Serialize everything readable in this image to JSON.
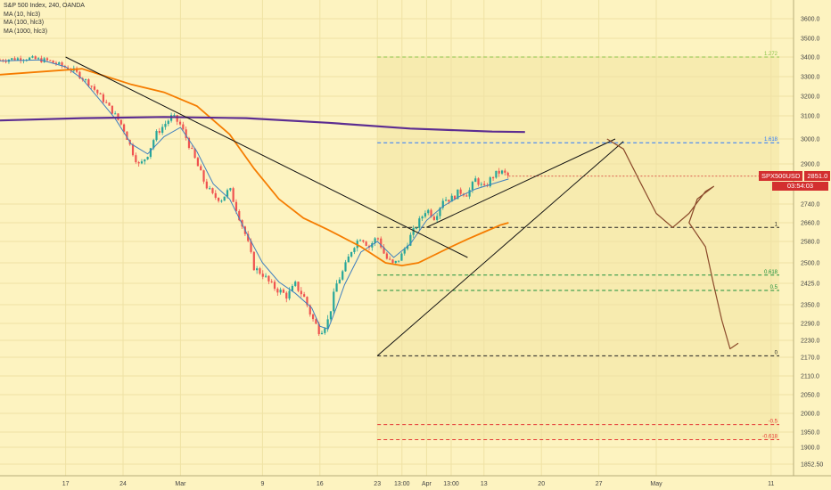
{
  "legend": {
    "title": "S&P 500 Index, 240, OANDA",
    "ma1": "MA (10, hlc3)",
    "ma2": "MA (100, hlc3)",
    "ma3": "MA (1000, hlc3)"
  },
  "badge": {
    "symbol": "SPX500USD",
    "price": "2851.0",
    "countdown": "03:54:03"
  },
  "colors": {
    "background": "#fdf3c0",
    "up_candle": "#26a69a",
    "down_candle": "#ef5350",
    "ma10": "#3f7fbf",
    "ma100": "#f57c00",
    "ma1000": "#5c2d91",
    "fib_zone": "#f3e7a8",
    "drawing": "#8b4a2b",
    "badge": "#d32f2f"
  },
  "chart_data": {
    "type": "candlestick",
    "y_axis_ticks": [
      3600,
      3500,
      3400,
      3300,
      3200,
      3100,
      3000,
      2900,
      2740,
      2660,
      2580,
      2500,
      2425,
      2350,
      2290,
      2230,
      2170,
      2110,
      2050,
      2000,
      1950,
      1900,
      1852.5
    ],
    "y_axis_labels": [
      "3600.0",
      "3500.0",
      "3400.0",
      "3300.0",
      "3200.0",
      "3100.0",
      "3000.0",
      "2900.0",
      "2740.0",
      "2660.0",
      "2580.0",
      "2500.0",
      "2425.0",
      "2350.0",
      "2290.0",
      "2230.0",
      "2170.0",
      "2110.0",
      "2050.0",
      "2000.0",
      "1950.0",
      "1900.0",
      "1852.50"
    ],
    "x_axis_labels": [
      {
        "label": "17",
        "x": 8
      },
      {
        "label": "24",
        "x": 15
      },
      {
        "label": "Mar",
        "x": 22
      },
      {
        "label": "9",
        "x": 32
      },
      {
        "label": "16",
        "x": 39
      },
      {
        "label": "23",
        "x": 46
      },
      {
        "label": "13:00",
        "x": 49
      },
      {
        "label": "Apr",
        "x": 52
      },
      {
        "label": "13:00",
        "x": 55
      },
      {
        "label": "13",
        "x": 59
      },
      {
        "label": "20",
        "x": 66
      },
      {
        "label": "27",
        "x": 73
      },
      {
        "label": "May",
        "x": 80
      },
      {
        "label": "11",
        "x": 94
      }
    ],
    "ohlc_close_path": [
      [
        0,
        3385
      ],
      [
        3,
        3395
      ],
      [
        6,
        3380
      ],
      [
        9,
        3330
      ],
      [
        11,
        3260
      ],
      [
        13,
        3160
      ],
      [
        15,
        3050
      ],
      [
        16,
        2960
      ],
      [
        17,
        2890
      ],
      [
        18,
        2940
      ],
      [
        19,
        3020
      ],
      [
        20,
        3060
      ],
      [
        21,
        3100
      ],
      [
        22,
        3060
      ],
      [
        23,
        2980
      ],
      [
        24,
        2900
      ],
      [
        25,
        2820
      ],
      [
        26,
        2770
      ],
      [
        27,
        2760
      ],
      [
        28,
        2800
      ],
      [
        29,
        2700
      ],
      [
        30,
        2600
      ],
      [
        31,
        2480
      ],
      [
        32,
        2460
      ],
      [
        33,
        2420
      ],
      [
        34,
        2400
      ],
      [
        35,
        2380
      ],
      [
        36,
        2420
      ],
      [
        37,
        2380
      ],
      [
        38,
        2310
      ],
      [
        39,
        2260
      ],
      [
        40,
        2300
      ],
      [
        41,
        2420
      ],
      [
        42,
        2480
      ],
      [
        43,
        2560
      ],
      [
        44,
        2600
      ],
      [
        45,
        2560
      ],
      [
        46,
        2600
      ],
      [
        47,
        2520
      ],
      [
        48,
        2490
      ],
      [
        49,
        2530
      ],
      [
        50,
        2600
      ],
      [
        51,
        2660
      ],
      [
        52,
        2720
      ],
      [
        53,
        2680
      ],
      [
        54,
        2760
      ],
      [
        55,
        2760
      ],
      [
        56,
        2790
      ],
      [
        57,
        2780
      ],
      [
        58,
        2840
      ],
      [
        59,
        2800
      ],
      [
        60,
        2850
      ],
      [
        61,
        2870
      ],
      [
        62,
        2851
      ]
    ],
    "series": [
      {
        "name": "MA (10, hlc3)",
        "values": [
          [
            0,
            3380
          ],
          [
            5,
            3385
          ],
          [
            8,
            3350
          ],
          [
            10,
            3290
          ],
          [
            12,
            3190
          ],
          [
            14,
            3090
          ],
          [
            16,
            2980
          ],
          [
            18,
            2940
          ],
          [
            20,
            3010
          ],
          [
            22,
            3050
          ],
          [
            24,
            2950
          ],
          [
            26,
            2820
          ],
          [
            28,
            2760
          ],
          [
            30,
            2620
          ],
          [
            32,
            2500
          ],
          [
            34,
            2430
          ],
          [
            36,
            2390
          ],
          [
            38,
            2340
          ],
          [
            39,
            2280
          ],
          [
            40,
            2270
          ],
          [
            41,
            2340
          ],
          [
            42,
            2420
          ],
          [
            44,
            2540
          ],
          [
            46,
            2580
          ],
          [
            48,
            2520
          ],
          [
            50,
            2570
          ],
          [
            52,
            2670
          ],
          [
            54,
            2730
          ],
          [
            56,
            2770
          ],
          [
            58,
            2800
          ],
          [
            60,
            2820
          ],
          [
            62,
            2840
          ]
        ]
      },
      {
        "name": "MA (100, hlc3)",
        "values": [
          [
            0,
            3310
          ],
          [
            10,
            3340
          ],
          [
            16,
            3260
          ],
          [
            20,
            3220
          ],
          [
            24,
            3150
          ],
          [
            28,
            3020
          ],
          [
            31,
            2880
          ],
          [
            34,
            2760
          ],
          [
            37,
            2680
          ],
          [
            40,
            2630
          ],
          [
            44,
            2560
          ],
          [
            47,
            2500
          ],
          [
            49,
            2490
          ],
          [
            51,
            2500
          ],
          [
            53,
            2530
          ],
          [
            55,
            2560
          ],
          [
            57,
            2590
          ],
          [
            59,
            2620
          ],
          [
            61,
            2650
          ],
          [
            62,
            2660
          ]
        ]
      },
      {
        "name": "MA (1000, hlc3)",
        "values": [
          [
            0,
            3080
          ],
          [
            10,
            3090
          ],
          [
            20,
            3095
          ],
          [
            30,
            3090
          ],
          [
            40,
            3070
          ],
          [
            50,
            3045
          ],
          [
            60,
            3032
          ],
          [
            64,
            3030
          ]
        ]
      }
    ],
    "fib_levels": [
      {
        "label": "1.272",
        "value": 3400,
        "color": "#8bc34a"
      },
      {
        "label": "1.618",
        "value": 2985,
        "color": "#2979ff"
      },
      {
        "label": "1",
        "value": 2640,
        "color": "#222222"
      },
      {
        "label": "0.618",
        "value": 2455,
        "color": "#1b8f3a"
      },
      {
        "label": "0.5",
        "value": 2400,
        "color": "#1b8f3a"
      },
      {
        "label": "0",
        "value": 2175,
        "color": "#222222"
      },
      {
        "label": "-0.5",
        "value": 1970,
        "color": "#e53935"
      },
      {
        "label": "-0.618",
        "value": 1925,
        "color": "#e53935"
      }
    ],
    "fib_zone": {
      "x_start": 46,
      "x_end": 95,
      "y_top": 3400,
      "y_bottom": 1925
    },
    "trendlines": [
      {
        "from": [
          8,
          3400
        ],
        "to": [
          57,
          2520
        ]
      },
      {
        "from": [
          46,
          2175
        ],
        "to": [
          76,
          2990
        ]
      },
      {
        "from": [
          52,
          2640
        ],
        "to": [
          75,
          3000
        ]
      }
    ],
    "projection_path": [
      [
        74,
        3000
      ],
      [
        76,
        2960
      ],
      [
        78,
        2830
      ],
      [
        80,
        2700
      ],
      [
        82,
        2640
      ],
      [
        84,
        2700
      ],
      [
        86,
        2790
      ],
      [
        87,
        2810
      ],
      [
        85,
        2760
      ],
      [
        84,
        2660
      ],
      [
        86,
        2560
      ],
      [
        87,
        2420
      ],
      [
        88,
        2300
      ],
      [
        89,
        2200
      ],
      [
        90,
        2220
      ]
    ],
    "last_price": 2851.0,
    "price_scale": {
      "min": 1852.5,
      "max": 3600
    }
  }
}
